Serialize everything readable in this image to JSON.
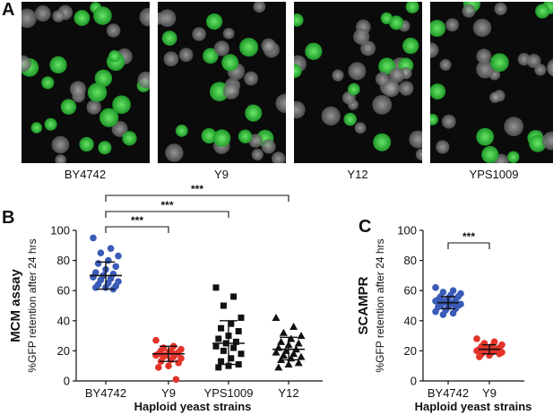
{
  "panel_labels": {
    "a": "A",
    "b": "B",
    "c": "C"
  },
  "micrographs": [
    {
      "label": "BY4742",
      "green_fraction": 0.65,
      "seed": 11
    },
    {
      "label": "Y9",
      "green_fraction": 0.35,
      "seed": 23
    },
    {
      "label": "Y12",
      "green_fraction": 0.45,
      "seed": 37
    },
    {
      "label": "YPS1009",
      "green_fraction": 0.35,
      "seed": 53
    }
  ],
  "colors": {
    "green_cell": "#29c93a",
    "grey_cell": "#8a8a8a",
    "micro_bg": "#0b0b0b",
    "blue_points": "#3a5bb8",
    "red_points": "#e4342a",
    "black_points": "#111111"
  },
  "chart_data": [
    {
      "type": "scatter",
      "title": "MCM assay",
      "xlabel": "Haploid yeast strains",
      "ylabel": "%GFP retention after 24 hrs",
      "ylim": [
        0,
        100
      ],
      "yticks": [
        0,
        20,
        40,
        60,
        80,
        100
      ],
      "categories": [
        "BY4742",
        "Y9",
        "YPS1009",
        "Y12"
      ],
      "series": [
        {
          "category": "BY4742",
          "marker": "circle",
          "color": "#3a5bb8",
          "values": [
            95,
            88,
            85,
            83,
            80,
            78,
            76,
            74,
            72,
            71,
            70,
            69,
            68,
            67,
            66,
            65,
            64,
            63,
            62,
            62,
            61
          ],
          "mean": 70,
          "sd_low": 61,
          "sd_high": 79
        },
        {
          "category": "Y9",
          "marker": "circle",
          "color": "#e4342a",
          "values": [
            27,
            23,
            22,
            21,
            20,
            20,
            19,
            19,
            18,
            18,
            17,
            17,
            16,
            16,
            15,
            14,
            13,
            12,
            10,
            9,
            1
          ],
          "mean": 18,
          "sd_low": 13,
          "sd_high": 23
        },
        {
          "category": "YPS1009",
          "marker": "square",
          "color": "#111111",
          "values": [
            62,
            56,
            50,
            42,
            38,
            35,
            33,
            30,
            28,
            26,
            25,
            23,
            22,
            20,
            18,
            15,
            13,
            11,
            10,
            9
          ],
          "mean": 25,
          "sd_low": 11,
          "sd_high": 40
        },
        {
          "category": "Y12",
          "marker": "triangle",
          "color": "#111111",
          "values": [
            42,
            36,
            32,
            30,
            28,
            26,
            25,
            24,
            22,
            21,
            20,
            19,
            18,
            17,
            16,
            15,
            14,
            12,
            11,
            9
          ],
          "mean": 21,
          "sd_low": 14,
          "sd_high": 29
        }
      ],
      "significance": [
        {
          "from": "BY4742",
          "to": "Y9",
          "label": "***"
        },
        {
          "from": "BY4742",
          "to": "YPS1009",
          "label": "***"
        },
        {
          "from": "BY4742",
          "to": "Y12",
          "label": "***"
        }
      ]
    },
    {
      "type": "scatter",
      "title": "SCAMPR",
      "xlabel": "Haploid yeast strains",
      "ylabel": "%GFP retention after 24 hrs",
      "ylim": [
        0,
        100
      ],
      "yticks": [
        0,
        20,
        40,
        60,
        80,
        100
      ],
      "categories": [
        "BY4742",
        "Y9"
      ],
      "series": [
        {
          "category": "BY4742",
          "marker": "circle",
          "color": "#3a5bb8",
          "values": [
            62,
            60,
            59,
            58,
            57,
            56,
            56,
            55,
            54,
            54,
            53,
            53,
            52,
            52,
            51,
            51,
            50,
            50,
            49,
            49,
            48,
            47,
            46,
            45,
            44
          ],
          "mean": 52,
          "sd_low": 48,
          "sd_high": 56
        },
        {
          "category": "Y9",
          "marker": "circle",
          "color": "#e4342a",
          "values": [
            28,
            26,
            25,
            24,
            23,
            23,
            22,
            22,
            21,
            21,
            21,
            20,
            20,
            20,
            19,
            19,
            18,
            18,
            17,
            16
          ],
          "mean": 21,
          "sd_low": 18,
          "sd_high": 24
        }
      ],
      "significance": [
        {
          "from": "BY4742",
          "to": "Y9",
          "label": "***"
        }
      ]
    }
  ]
}
